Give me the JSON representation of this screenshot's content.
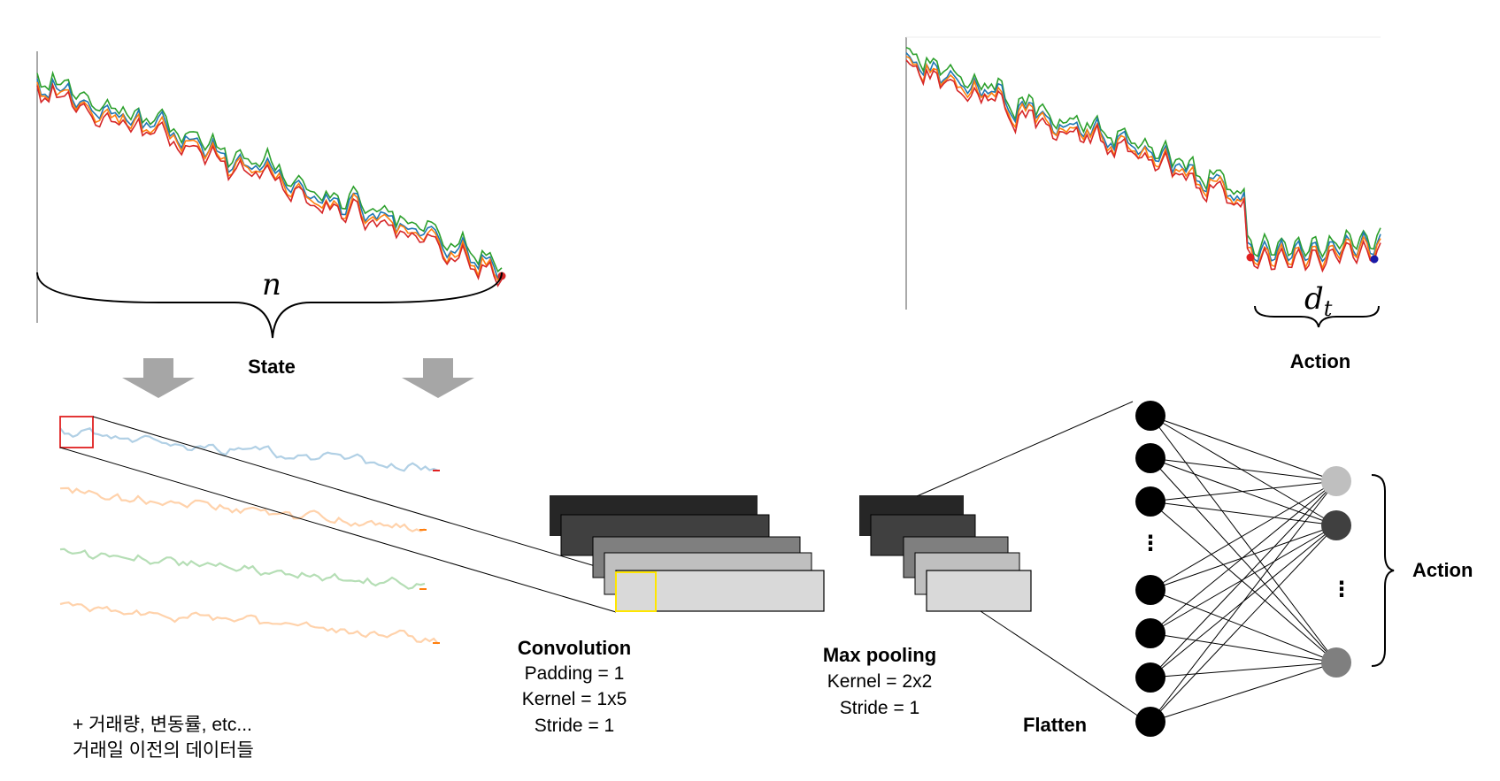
{
  "top_left": {
    "brace_label": "n",
    "state_label": "State"
  },
  "top_right": {
    "brace_label_base": "d",
    "brace_label_sub": "t",
    "action_label": "Action"
  },
  "left_notes": {
    "line1": "+ 거래량, 변동률, etc...",
    "line2": "거래일 이전의 데이터들"
  },
  "convolution": {
    "title": "Convolution",
    "padding": "Padding = 1",
    "kernel": "Kernel = 1x5",
    "stride": "Stride = 1"
  },
  "max_pooling": {
    "title": "Max pooling",
    "kernel": "Kernel = 2x2",
    "stride": "Stride = 1"
  },
  "flatten_label": "Flatten",
  "output_action_label": "Action",
  "vertical_ellipsis": "⋮",
  "colors": {
    "series_blue": "#1f77b4",
    "series_orange": "#ff7f0e",
    "series_green": "#2ca02c",
    "series_red": "#d62728",
    "arrow_gray": "#a6a6a6",
    "highlight_red": "#e02020",
    "highlight_yellow": "#ffe600",
    "layer_shades": [
      "#262626",
      "#404040",
      "#7f7f7f",
      "#bfbfbf",
      "#d9d9d9"
    ],
    "output_nodes": [
      "#bfbfbf",
      "#404040",
      "#7f7f7f"
    ]
  }
}
